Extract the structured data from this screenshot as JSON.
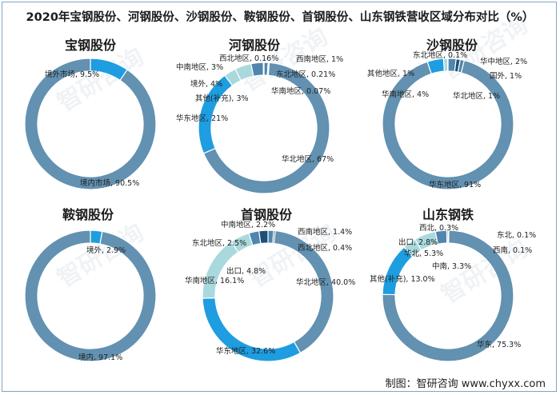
{
  "title": "2020年宝钢股份、河钢股份、沙钢股份、鞍钢股份、首钢股份、山东钢铁营收区域分布对比（%）",
  "footer": "制图：智研咨询 www.chyxx.com",
  "watermark": "智研咨询",
  "colors": {
    "dark": "#1f4e79",
    "steel": "#4f86ad",
    "blue": "#1e9de0",
    "light": "#a9d9dd",
    "main": "#6291b1",
    "text": "#222222"
  },
  "chart_data": [
    {
      "type": "pie",
      "subtype": "donut",
      "title": "宝钢股份",
      "slices": [
        {
          "label": "境外市场, 9.5%",
          "value": 9.5,
          "color": "#1e9de0"
        },
        {
          "label": "境内市场, 90.5%",
          "value": 90.5,
          "color": "#6291b1"
        }
      ]
    },
    {
      "type": "pie",
      "subtype": "donut",
      "title": "河钢股份",
      "slices": [
        {
          "label": "西南地区, 1%",
          "value": 1,
          "color": "#4f86ad"
        },
        {
          "label": "东北地区, 0.21%",
          "value": 0.21,
          "color": "#1f4e79"
        },
        {
          "label": "华南地区, 0.07%",
          "value": 0.07,
          "color": "#4f86ad"
        },
        {
          "label": "华北地区, 67%",
          "value": 67,
          "color": "#6291b1"
        },
        {
          "label": "华东地区, 21%",
          "value": 21,
          "color": "#1e9de0"
        },
        {
          "label": "其他(补充), 3%",
          "value": 3,
          "color": "#a9d9dd"
        },
        {
          "label": "境外, 4%",
          "value": 4,
          "color": "#a9d9dd"
        },
        {
          "label": "中南地区, 3%",
          "value": 3,
          "color": "#4f86ad"
        },
        {
          "label": "西北地区, 0.16%",
          "value": 0.16,
          "color": "#1f4e79"
        }
      ]
    },
    {
      "type": "pie",
      "subtype": "donut",
      "title": "沙钢股份",
      "slices": [
        {
          "label": "华中地区, 2%",
          "value": 2,
          "color": "#4f86ad"
        },
        {
          "label": "国外, 1%",
          "value": 1,
          "color": "#1f4e79"
        },
        {
          "label": "华北地区, 1%",
          "value": 1,
          "color": "#4f86ad"
        },
        {
          "label": "华东地区, 91%",
          "value": 91,
          "color": "#6291b1"
        },
        {
          "label": "华南地区, 4%",
          "value": 4,
          "color": "#1e9de0"
        },
        {
          "label": "其他地区, 1%",
          "value": 1,
          "color": "#a9d9dd"
        },
        {
          "label": "东北地区, 0.1%",
          "value": 0.1,
          "color": "#1f4e79"
        }
      ]
    },
    {
      "type": "pie",
      "subtype": "donut",
      "title": "鞍钢股份",
      "slices": [
        {
          "label": "境外, 2.9%",
          "value": 2.9,
          "color": "#1e9de0"
        },
        {
          "label": "境内, 97.1%",
          "value": 97.1,
          "color": "#6291b1"
        }
      ]
    },
    {
      "type": "pie",
      "subtype": "donut",
      "title": "首钢股份",
      "slices": [
        {
          "label": "西南地区, 1.4%",
          "value": 1.4,
          "color": "#4f86ad"
        },
        {
          "label": "西北地区, 0.4%",
          "value": 0.4,
          "color": "#1f4e79"
        },
        {
          "label": "华北地区, 40.0%",
          "value": 40.0,
          "color": "#6291b1"
        },
        {
          "label": "华东地区, 32.6%",
          "value": 32.6,
          "color": "#1e9de0"
        },
        {
          "label": "华南地区, 16.1%",
          "value": 16.1,
          "color": "#a9d9dd"
        },
        {
          "label": "出口, 4.8%",
          "value": 4.8,
          "color": "#a9d9dd"
        },
        {
          "label": "东北地区, 2.5%",
          "value": 2.5,
          "color": "#4f86ad"
        },
        {
          "label": "中南地区, 2.2%",
          "value": 2.2,
          "color": "#1f4e79"
        }
      ]
    },
    {
      "type": "pie",
      "subtype": "donut",
      "title": "山东钢铁",
      "slices": [
        {
          "label": "东北, 0.1%",
          "value": 0.1,
          "color": "#1f4e79"
        },
        {
          "label": "西南, 0.1%",
          "value": 0.1,
          "color": "#4f86ad"
        },
        {
          "label": "华东, 75.3%",
          "value": 75.3,
          "color": "#6291b1"
        },
        {
          "label": "其他(补充), 13.0%",
          "value": 13.0,
          "color": "#1e9de0"
        },
        {
          "label": "中南, 3.3%",
          "value": 3.3,
          "color": "#a9d9dd"
        },
        {
          "label": "华北, 5.3%",
          "value": 5.3,
          "color": "#a9d9dd"
        },
        {
          "label": "出口, 2.8%",
          "value": 2.8,
          "color": "#4f86ad"
        },
        {
          "label": "西北, 0.3%",
          "value": 0.3,
          "color": "#1f4e79"
        }
      ]
    }
  ]
}
